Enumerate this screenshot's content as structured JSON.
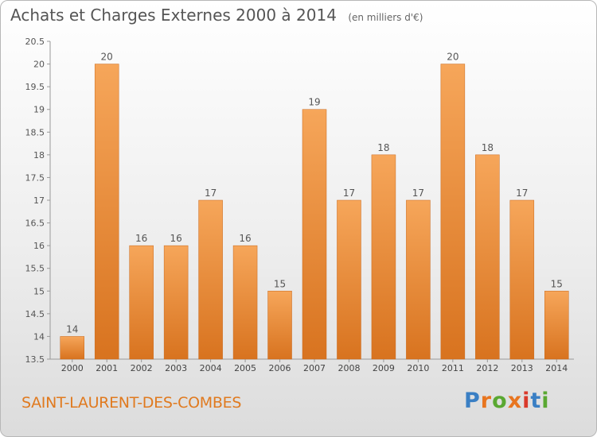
{
  "header": {
    "title": "Achats et Charges Externes 2000 à 2014",
    "subtitle": "(en milliers d'€)"
  },
  "footer": {
    "commune": "SAINT-LAURENT-DES-COMBES",
    "logo_text": "Proxiti"
  },
  "colors": {
    "bar_light": "#f6a65a",
    "bar_dark": "#d8731f",
    "commune_text": "#e07a1f",
    "logo_letters": [
      "#3a7fc4",
      "#e8751f",
      "#5aa832",
      "#e8751f",
      "#d93a2b",
      "#3a7fc4",
      "#5aa832"
    ]
  },
  "chart_data": {
    "type": "bar",
    "title": "Achats et Charges Externes 2000 à 2014",
    "subtitle": "(en milliers d'€)",
    "categories": [
      "2000",
      "2001",
      "2002",
      "2003",
      "2004",
      "2005",
      "2006",
      "2007",
      "2008",
      "2009",
      "2010",
      "2011",
      "2012",
      "2013",
      "2014"
    ],
    "values": [
      14,
      20,
      16,
      16,
      17,
      16,
      15,
      19,
      17,
      18,
      17,
      20,
      18,
      17,
      15
    ],
    "value_labels": [
      "14",
      "20",
      "16",
      "16",
      "17",
      "16",
      "15",
      "19",
      "17",
      "18",
      "17",
      "20",
      "18",
      "17",
      "15"
    ],
    "yticks": [
      "13.5",
      "14",
      "14.5",
      "15",
      "15.5",
      "16",
      "16.5",
      "17",
      "17.5",
      "18",
      "18.5",
      "19",
      "19.5",
      "20",
      "20.5"
    ],
    "ylim": [
      13.5,
      20.5
    ],
    "grid": false,
    "legend": "none"
  }
}
